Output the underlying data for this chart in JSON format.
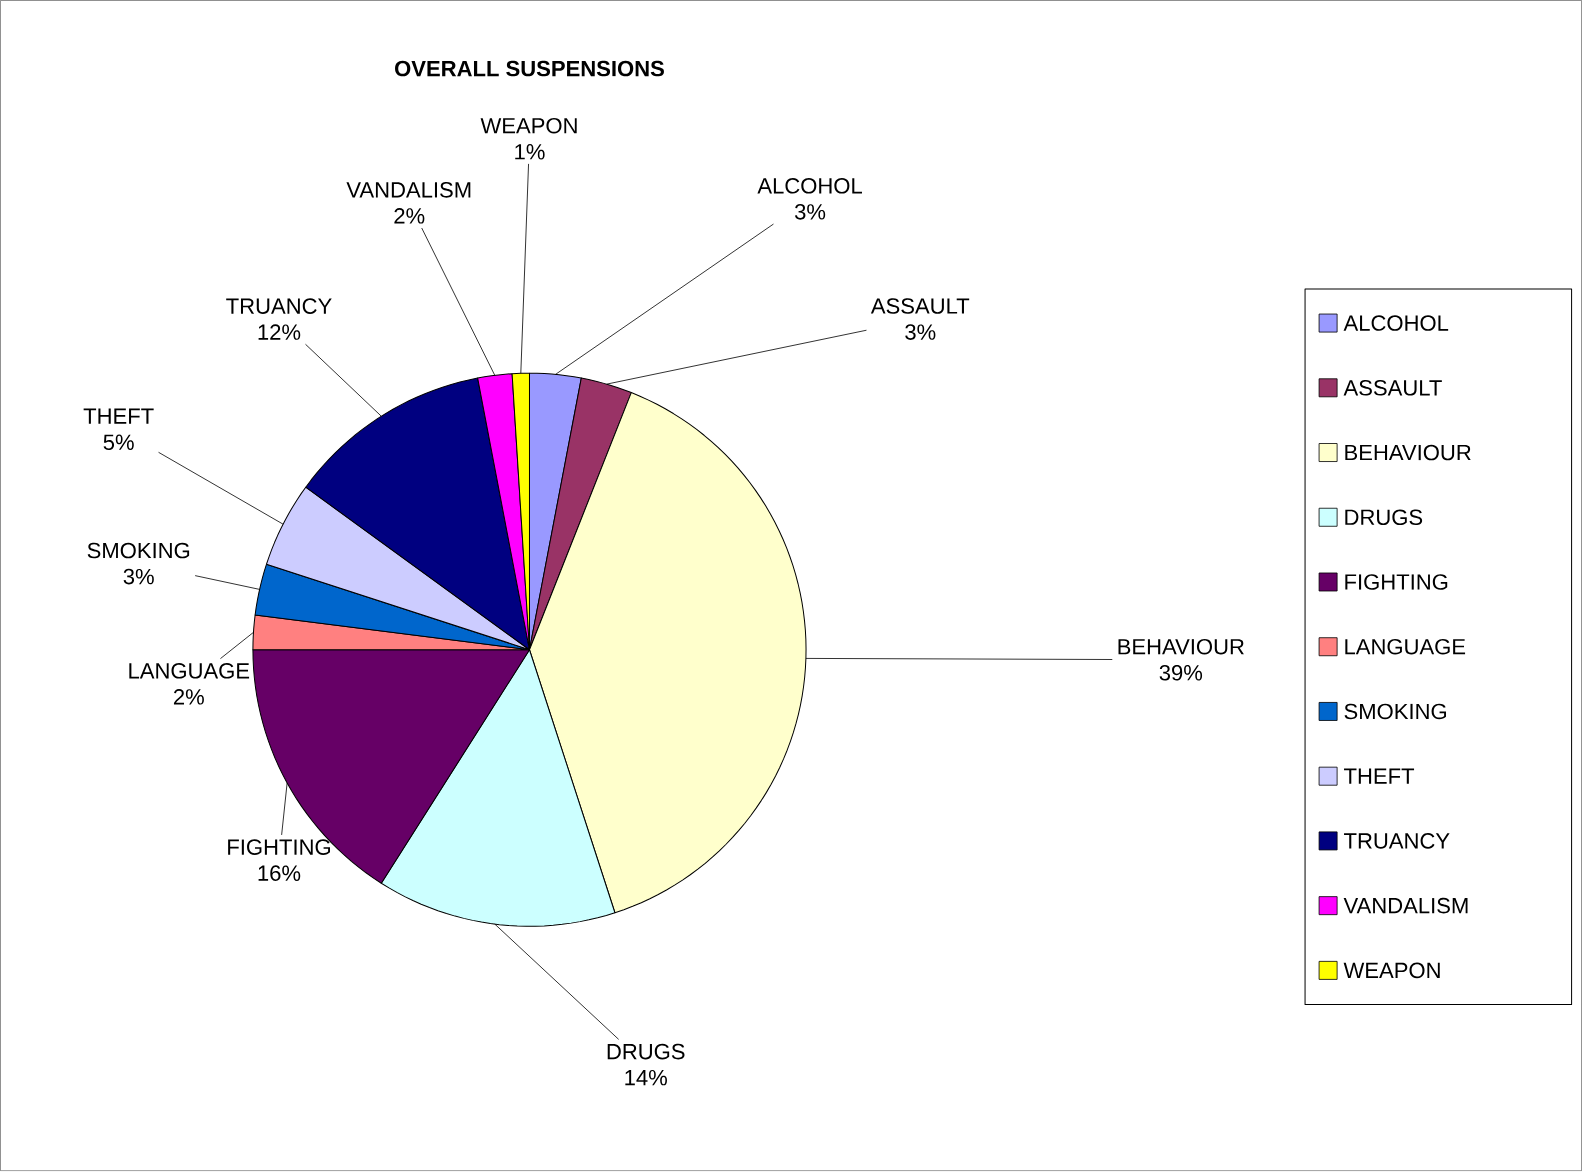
{
  "chart_data": {
    "type": "pie",
    "title": "OVERALL SUSPENSIONS",
    "categories": [
      "ALCOHOL",
      "ASSAULT",
      "BEHAVIOUR",
      "DRUGS",
      "FIGHTING",
      "LANGUAGE",
      "SMOKING",
      "THEFT",
      "TRUANCY",
      "VANDALISM",
      "WEAPON"
    ],
    "values": [
      3,
      3,
      39,
      14,
      16,
      2,
      3,
      5,
      12,
      2,
      1
    ],
    "colors": [
      "#9999ff",
      "#993366",
      "#ffffcc",
      "#ccffff",
      "#660066",
      "#ff8080",
      "#0066cc",
      "#ccccff",
      "#000080",
      "#ff00ff",
      "#ffff00"
    ],
    "value_labels": [
      "3%",
      "3%",
      "39%",
      "14%",
      "16%",
      "2%",
      "3%",
      "5%",
      "12%",
      "2%",
      "1%"
    ],
    "legend": "right"
  }
}
